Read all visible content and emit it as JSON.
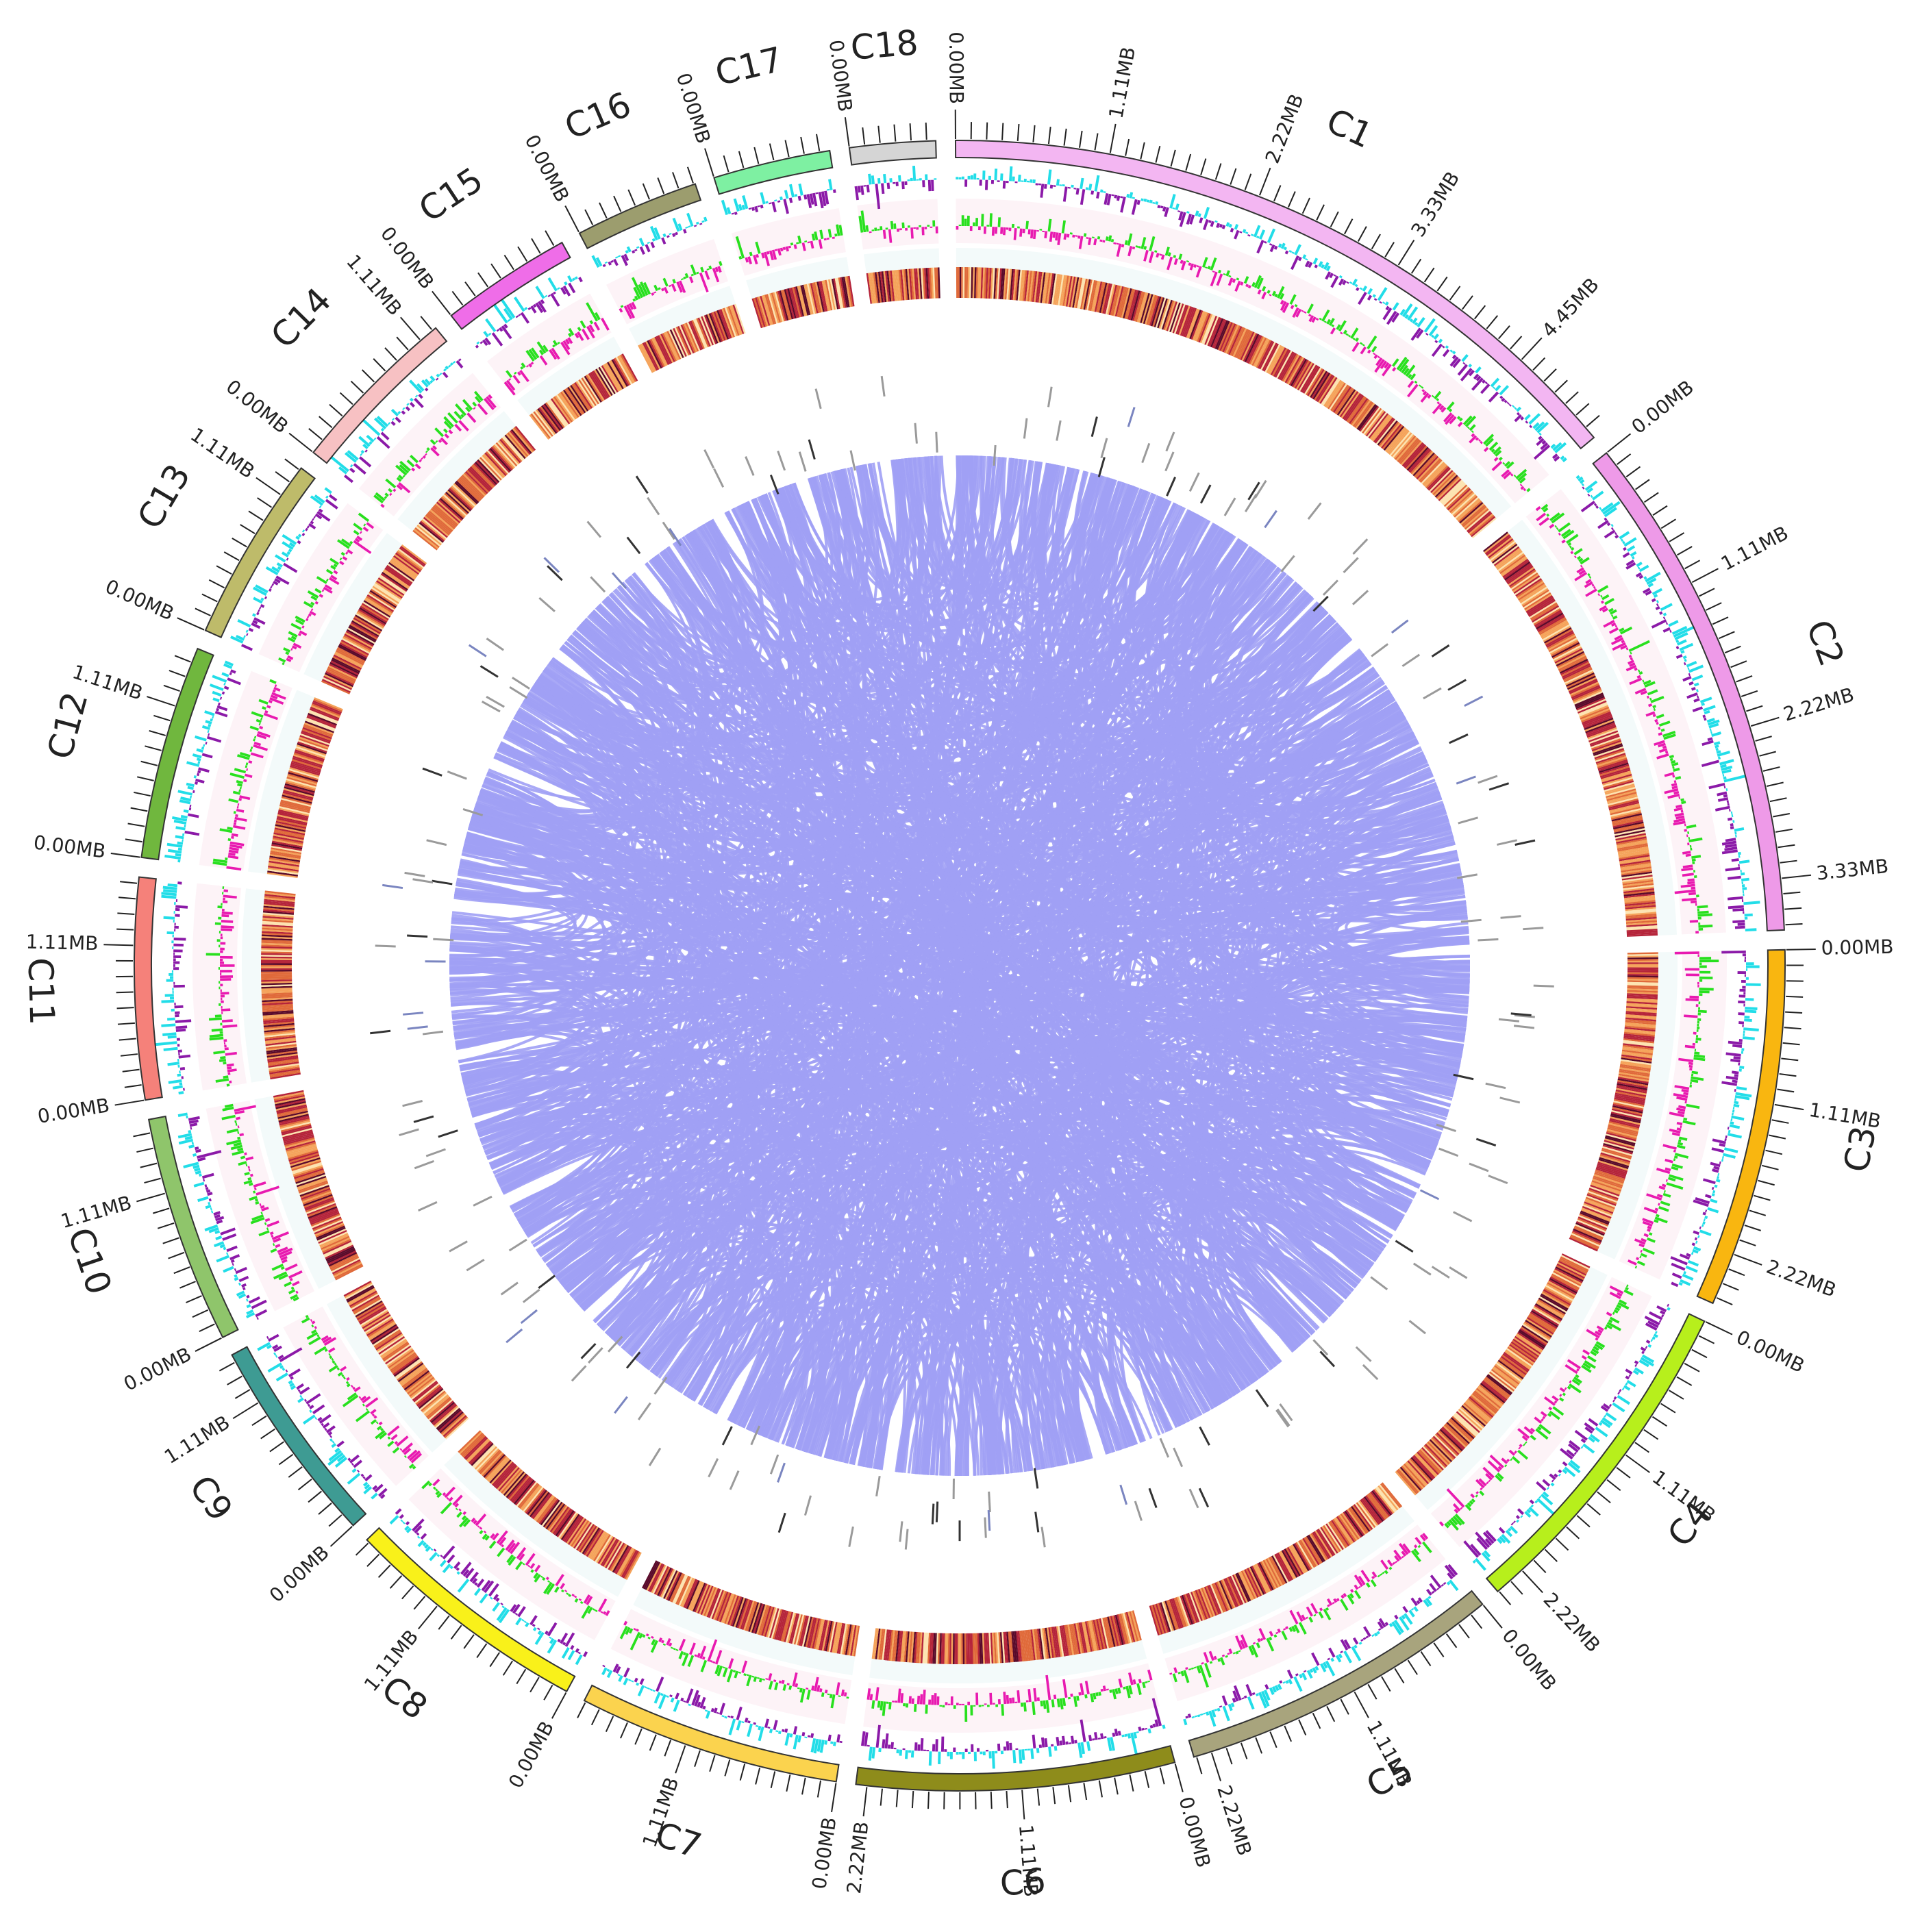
{
  "chart_data": {
    "type": "circos",
    "title": "",
    "unit_suffix": "MB",
    "chromosomes": [
      {
        "name": "C1",
        "length_mb": 5.2,
        "color": "#f3b6f2"
      },
      {
        "name": "C2",
        "length_mb": 3.7,
        "color": "#ee9ae8"
      },
      {
        "name": "C3",
        "length_mb": 2.6,
        "color": "#f9b610"
      },
      {
        "name": "C4",
        "length_mb": 2.45,
        "color": "#b7ef1c"
      },
      {
        "name": "C5",
        "length_mb": 2.35,
        "color": "#a8a47d"
      },
      {
        "name": "C6",
        "length_mb": 2.3,
        "color": "#8e8c1b"
      },
      {
        "name": "C7",
        "length_mb": 1.9,
        "color": "#fbd34e"
      },
      {
        "name": "C8",
        "length_mb": 1.8,
        "color": "#f9f11a"
      },
      {
        "name": "C9",
        "length_mb": 1.5,
        "color": "#3e9b93"
      },
      {
        "name": "C10",
        "length_mb": 1.65,
        "color": "#8fc56b"
      },
      {
        "name": "C11",
        "length_mb": 1.6,
        "color": "#f5817a"
      },
      {
        "name": "C12",
        "length_mb": 1.55,
        "color": "#70b73e"
      },
      {
        "name": "C13",
        "length_mb": 1.35,
        "color": "#bebb6a"
      },
      {
        "name": "C14",
        "length_mb": 1.25,
        "color": "#f7c1c3"
      },
      {
        "name": "C15",
        "length_mb": 0.95,
        "color": "#ef6de8"
      },
      {
        "name": "C16",
        "length_mb": 0.9,
        "color": "#9c9d6e"
      },
      {
        "name": "C17",
        "length_mb": 0.85,
        "color": "#7ef0a2"
      },
      {
        "name": "C18",
        "length_mb": 0.62,
        "color": "#d5d5d5"
      }
    ],
    "tick_labels": [
      {
        "chrom": "C1",
        "position_mb": 0.0,
        "label": "0.00MB"
      },
      {
        "chrom": "C1",
        "position_mb": 1.11,
        "label": "1.11MB"
      },
      {
        "chrom": "C1",
        "position_mb": 2.22,
        "label": "2.22MB"
      },
      {
        "chrom": "C1",
        "position_mb": 3.33,
        "label": "3.33MB"
      },
      {
        "chrom": "C1",
        "position_mb": 4.45,
        "label": "4.45MB"
      },
      {
        "chrom": "C2",
        "position_mb": 0.0,
        "label": "0.00MB"
      },
      {
        "chrom": "C2",
        "position_mb": 1.11,
        "label": "1.11MB"
      },
      {
        "chrom": "C2",
        "position_mb": 2.22,
        "label": "2.22MB"
      },
      {
        "chrom": "C2",
        "position_mb": 3.33,
        "label": "3.33MB"
      },
      {
        "chrom": "C3",
        "position_mb": 0.0,
        "label": "0.00MB"
      },
      {
        "chrom": "C3",
        "position_mb": 1.11,
        "label": "1.11MB"
      },
      {
        "chrom": "C3",
        "position_mb": 2.22,
        "label": "2.22MB"
      },
      {
        "chrom": "C4",
        "position_mb": 0.0,
        "label": "0.00MB"
      },
      {
        "chrom": "C4",
        "position_mb": 1.11,
        "label": "1.11MB"
      },
      {
        "chrom": "C4",
        "position_mb": 2.22,
        "label": "2.22MB"
      },
      {
        "chrom": "C5",
        "position_mb": 0.0,
        "label": "0.00MB"
      },
      {
        "chrom": "C5",
        "position_mb": 1.11,
        "label": "1.11MB"
      },
      {
        "chrom": "C5",
        "position_mb": 2.22,
        "label": "2.22MB"
      },
      {
        "chrom": "C6",
        "position_mb": 0.0,
        "label": "0.00MB"
      },
      {
        "chrom": "C6",
        "position_mb": 1.11,
        "label": "1.11MB"
      },
      {
        "chrom": "C6",
        "position_mb": 2.22,
        "label": "2.22MB"
      },
      {
        "chrom": "C7",
        "position_mb": 0.0,
        "label": "0.00MB"
      },
      {
        "chrom": "C7",
        "position_mb": 1.11,
        "label": "1.11MB"
      },
      {
        "chrom": "C8",
        "position_mb": 0.0,
        "label": "0.00MB"
      },
      {
        "chrom": "C8",
        "position_mb": 1.11,
        "label": "1.11MB"
      },
      {
        "chrom": "C9",
        "position_mb": 0.0,
        "label": "0.00MB"
      },
      {
        "chrom": "C9",
        "position_mb": 1.11,
        "label": "1.11MB"
      },
      {
        "chrom": "C10",
        "position_mb": 0.0,
        "label": "0.00MB"
      },
      {
        "chrom": "C10",
        "position_mb": 1.11,
        "label": "1.11MB"
      },
      {
        "chrom": "C11",
        "position_mb": 0.0,
        "label": "0.00MB"
      },
      {
        "chrom": "C11",
        "position_mb": 1.11,
        "label": "1.11MB"
      },
      {
        "chrom": "C12",
        "position_mb": 0.0,
        "label": "0.00MB"
      },
      {
        "chrom": "C12",
        "position_mb": 1.11,
        "label": "1.11MB"
      },
      {
        "chrom": "C13",
        "position_mb": 0.0,
        "label": "0.00MB"
      },
      {
        "chrom": "C13",
        "position_mb": 1.11,
        "label": "1.11MB"
      },
      {
        "chrom": "C14",
        "position_mb": 0.0,
        "label": "0.00MB"
      },
      {
        "chrom": "C14",
        "position_mb": 1.11,
        "label": "1.11MB"
      },
      {
        "chrom": "C15",
        "position_mb": 0.0,
        "label": "0.00MB"
      },
      {
        "chrom": "C16",
        "position_mb": 0.0,
        "label": "0.00MB"
      },
      {
        "chrom": "C17",
        "position_mb": 0.0,
        "label": "0.00MB"
      },
      {
        "chrom": "C18",
        "position_mb": 0.0,
        "label": "0.00MB"
      }
    ],
    "tracks": {
      "gc_skew": {
        "colors": {
          "positive": "#22dde8",
          "negative": "#8b1aa8"
        }
      },
      "gc_content": {
        "colors": {
          "positive": "#28e01e",
          "negative": "#e81ab0"
        }
      },
      "gene_density_heatmap": {
        "colors": [
          "#fde3b0",
          "#f5a35a",
          "#e06a3a",
          "#b5243a",
          "#5a0a2a"
        ]
      },
      "background_bands": {
        "colors": [
          "#fdf3f7",
          "#f3fafa"
        ]
      },
      "feature_marks": {
        "colors": [
          "#9a9a9a",
          "#333333",
          "#7a85c0"
        ]
      },
      "links": {
        "color": "#a0a0f5",
        "count": 1300
      }
    }
  }
}
